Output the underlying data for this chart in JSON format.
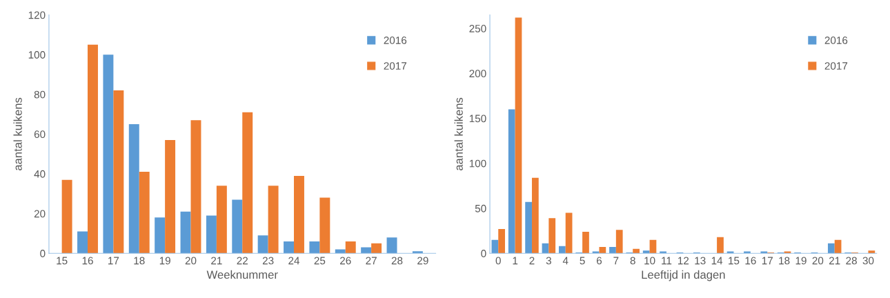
{
  "chart_data": [
    {
      "type": "bar",
      "xlabel": "Weeknummer",
      "ylabel": "aantal kuikens",
      "categories": [
        "15",
        "16",
        "17",
        "18",
        "19",
        "20",
        "21",
        "22",
        "23",
        "24",
        "25",
        "26",
        "27",
        "28",
        "29"
      ],
      "series": [
        {
          "name": "2016",
          "color": "#5b9bd5",
          "values": [
            0,
            11,
            100,
            65,
            18,
            21,
            19,
            27,
            9,
            6,
            6,
            2,
            3,
            8,
            1
          ]
        },
        {
          "name": "2017",
          "color": "#ed7d31",
          "values": [
            37,
            105,
            82,
            41,
            57,
            67,
            34,
            71,
            34,
            39,
            28,
            6,
            5,
            0,
            0
          ]
        }
      ],
      "ylim": [
        0,
        120
      ],
      "yticks": [
        0,
        20,
        40,
        60,
        80,
        100,
        120
      ],
      "grid": false,
      "legend": "top right"
    },
    {
      "type": "bar",
      "xlabel": "Leeftijd in dagen",
      "ylabel": "aantal kuikens",
      "categories": [
        "0",
        "1",
        "2",
        "3",
        "4",
        "5",
        "6",
        "7",
        "8",
        "10",
        "11",
        "12",
        "13",
        "14",
        "15",
        "16",
        "17",
        "18",
        "19",
        "20",
        "21",
        "28",
        "30"
      ],
      "series": [
        {
          "name": "2016",
          "color": "#5b9bd5",
          "values": [
            15,
            160,
            57,
            11,
            8,
            1,
            2,
            7,
            1,
            3,
            2,
            1,
            1,
            0,
            2,
            2,
            2,
            1,
            1,
            1,
            11,
            1,
            0
          ]
        },
        {
          "name": "2017",
          "color": "#ed7d31",
          "values": [
            27,
            262,
            84,
            39,
            45,
            24,
            7,
            26,
            5,
            15,
            0,
            0,
            0,
            18,
            0,
            0,
            1,
            2,
            0,
            0,
            15,
            1,
            3
          ]
        }
      ],
      "ylim": [
        0,
        265
      ],
      "yticks": [
        0,
        50,
        100,
        150,
        200,
        250
      ],
      "grid": false,
      "legend": "top right"
    }
  ]
}
